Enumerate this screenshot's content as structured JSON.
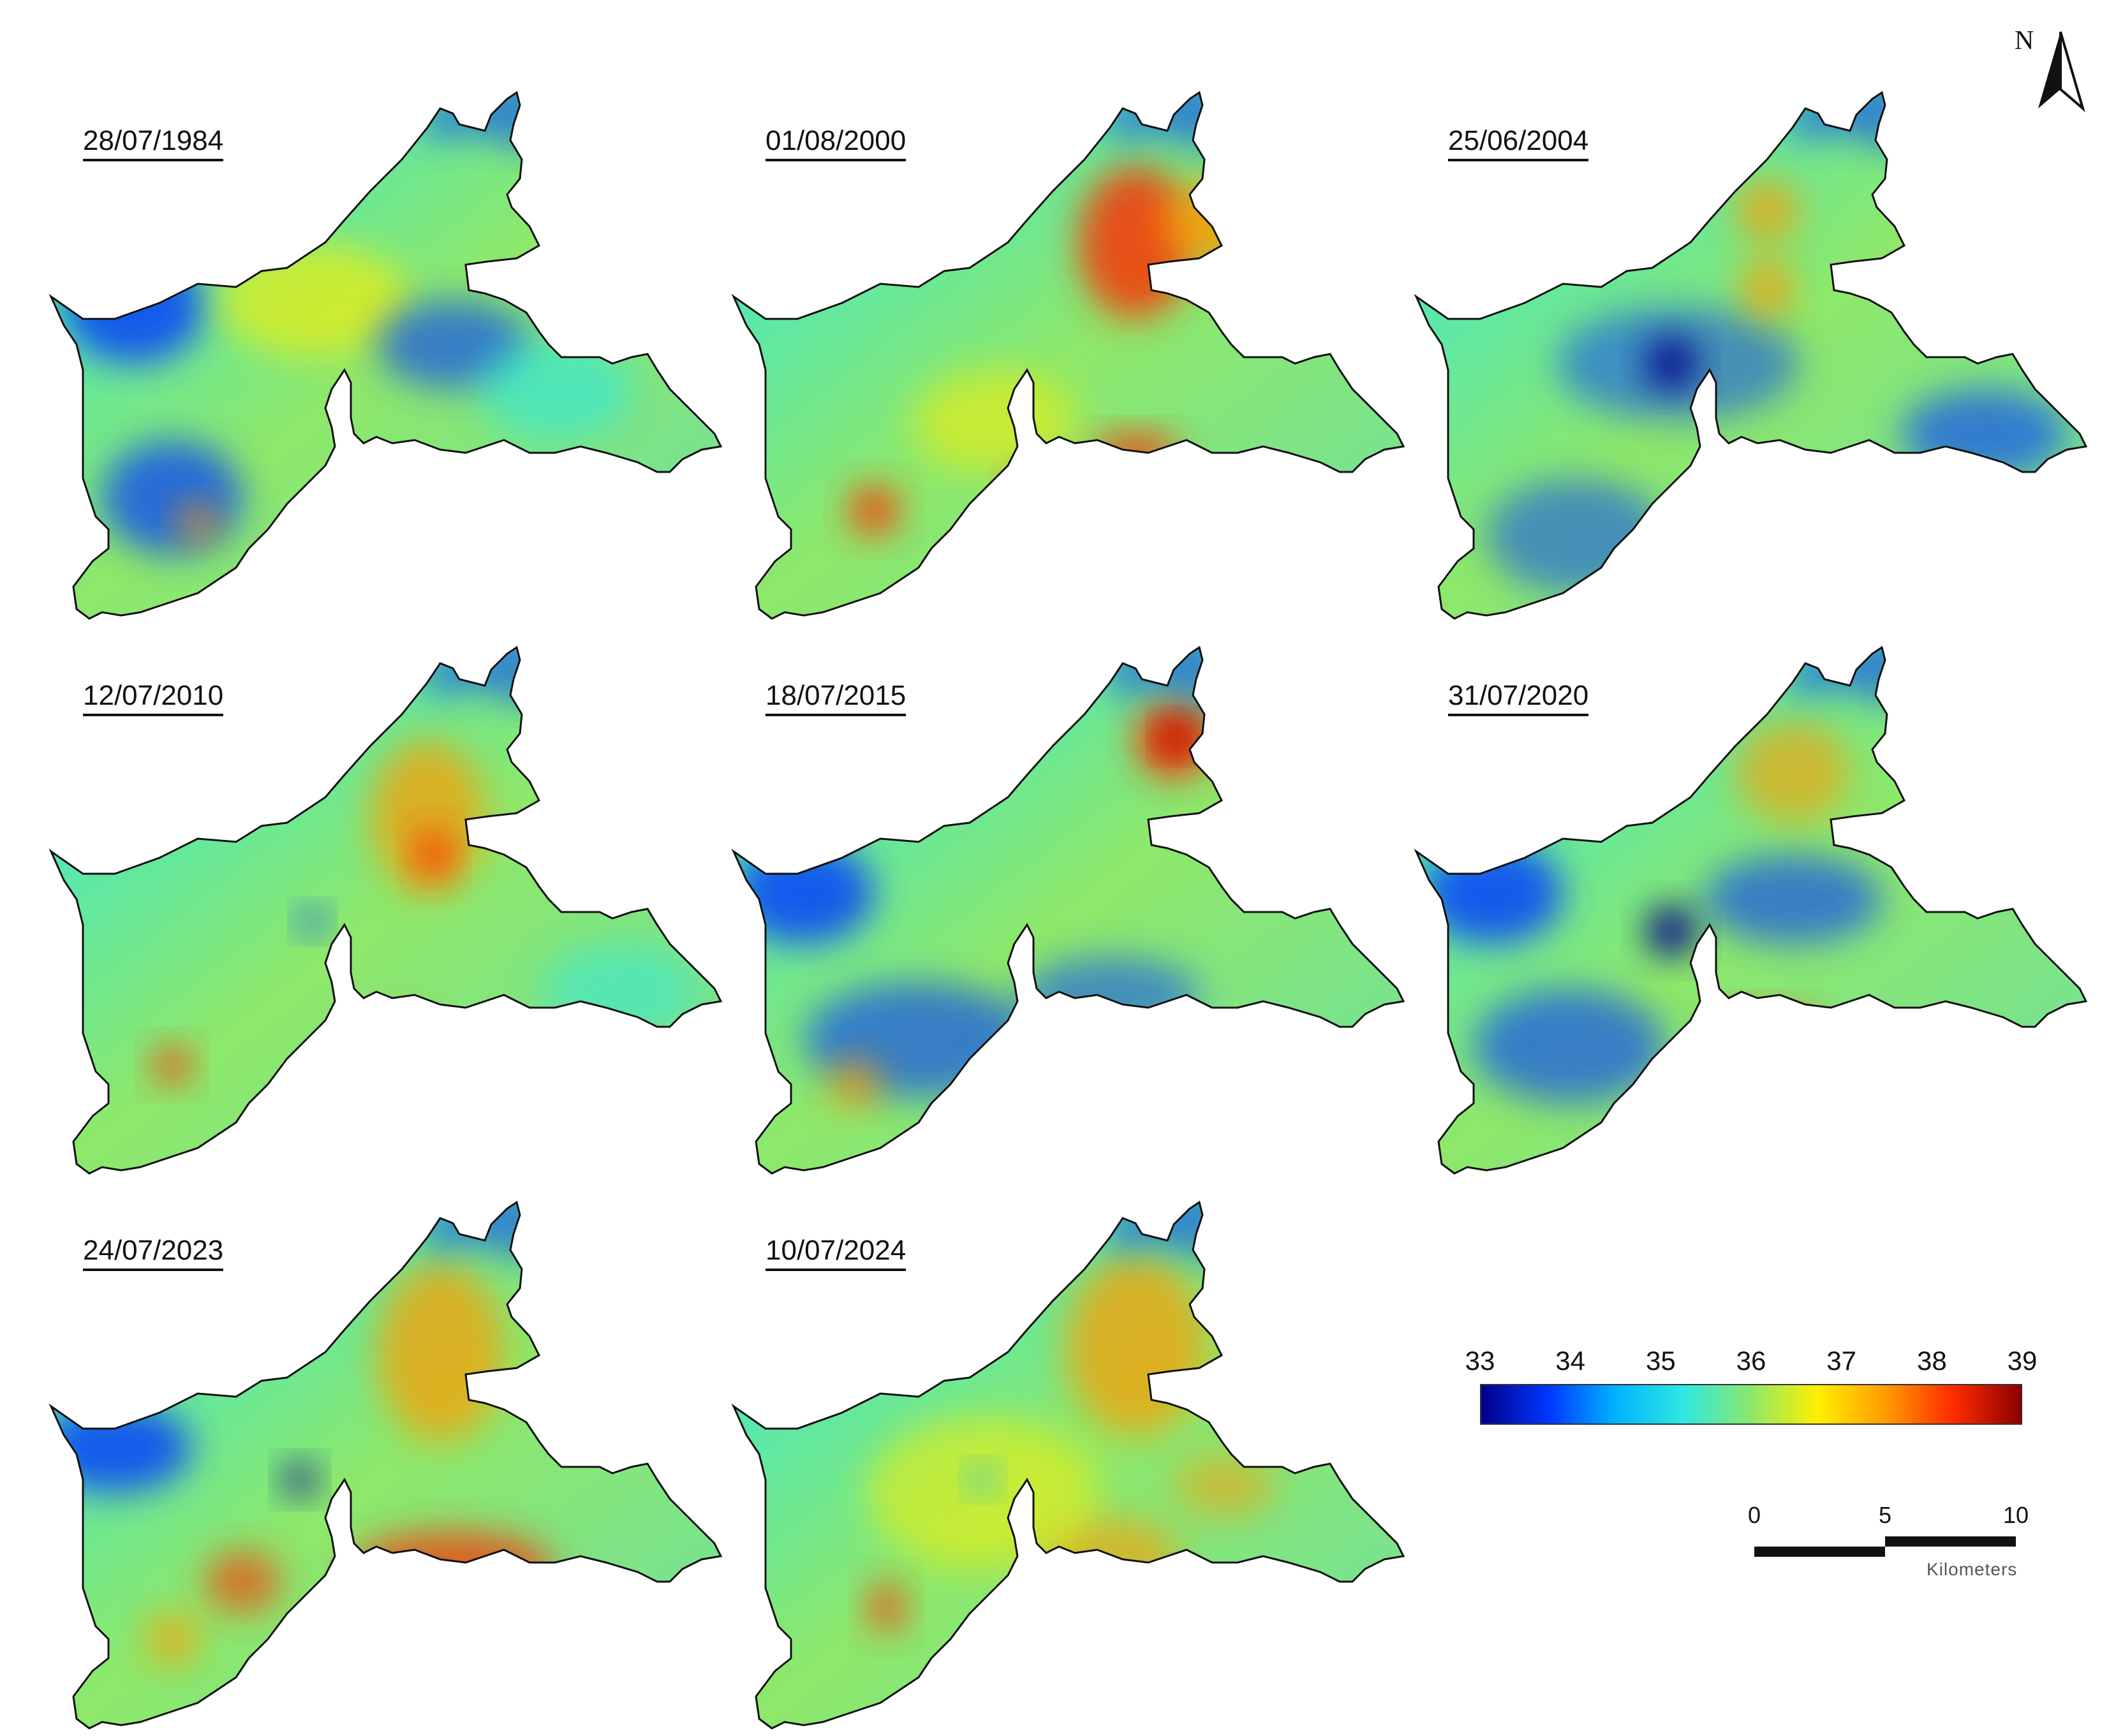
{
  "panels": [
    {
      "date": "28/07/1984"
    },
    {
      "date": "01/08/2000"
    },
    {
      "date": "25/06/2004"
    },
    {
      "date": "12/07/2010"
    },
    {
      "date": "18/07/2015"
    },
    {
      "date": "31/07/2020"
    },
    {
      "date": "24/07/2023"
    },
    {
      "date": "10/07/2024"
    }
  ],
  "north_arrow": {
    "label": "N"
  },
  "legend": {
    "ticks": [
      "33",
      "34",
      "35",
      "36",
      "37",
      "38",
      "39"
    ],
    "colors": [
      "#00008b",
      "#0037ff",
      "#00b4ff",
      "#2ee8e0",
      "#8ee86a",
      "#ffef00",
      "#ff9a00",
      "#ff2a00",
      "#8b0000"
    ]
  },
  "scale_bar": {
    "ticks": [
      "0",
      "5",
      "10"
    ],
    "unit": "Kilometers"
  }
}
